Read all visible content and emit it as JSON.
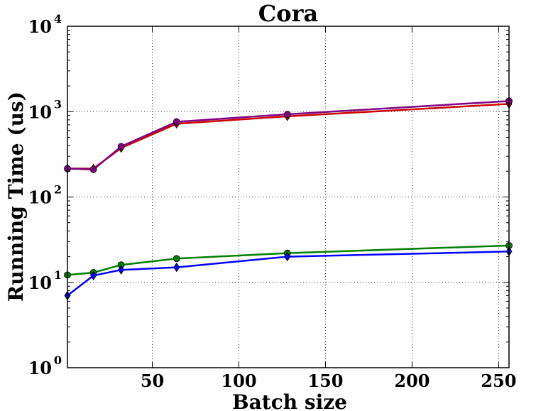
{
  "chart_data": {
    "type": "line",
    "title": "Cora",
    "xlabel": "Batch size",
    "ylabel": "Running Time (us)",
    "xscale": "linear",
    "yscale": "log",
    "xlim": [
      1,
      256
    ],
    "ylim": [
      1,
      10000
    ],
    "grid": true,
    "legend": "none",
    "xticks": [
      {
        "value": 50,
        "label": "50"
      },
      {
        "value": 100,
        "label": "100"
      },
      {
        "value": 150,
        "label": "150"
      },
      {
        "value": 200,
        "label": "200"
      },
      {
        "value": 250,
        "label": "250"
      }
    ],
    "yticks": [
      {
        "value": 1,
        "base": "10",
        "exp": "0"
      },
      {
        "value": 10,
        "base": "10",
        "exp": "1"
      },
      {
        "value": 100,
        "base": "10",
        "exp": "2"
      },
      {
        "value": 1000,
        "base": "10",
        "exp": "3"
      },
      {
        "value": 10000,
        "base": "10",
        "exp": "4"
      }
    ],
    "x": [
      1,
      16,
      32,
      64,
      128,
      256
    ],
    "series": [
      {
        "name": "series-red",
        "color": "#cc0000",
        "marker": "diamond",
        "values": [
          215,
          215,
          375,
          720,
          880,
          1230
        ]
      },
      {
        "name": "series-purple",
        "color": "#800080",
        "marker": "circle",
        "values": [
          215,
          210,
          390,
          760,
          930,
          1330
        ]
      },
      {
        "name": "series-green",
        "color": "#007f00",
        "marker": "circle",
        "values": [
          12.2,
          13,
          16,
          19,
          22,
          27
        ]
      },
      {
        "name": "series-blue",
        "color": "#0000ff",
        "marker": "diamond",
        "values": [
          7,
          12,
          14,
          15,
          20,
          23
        ]
      }
    ]
  }
}
